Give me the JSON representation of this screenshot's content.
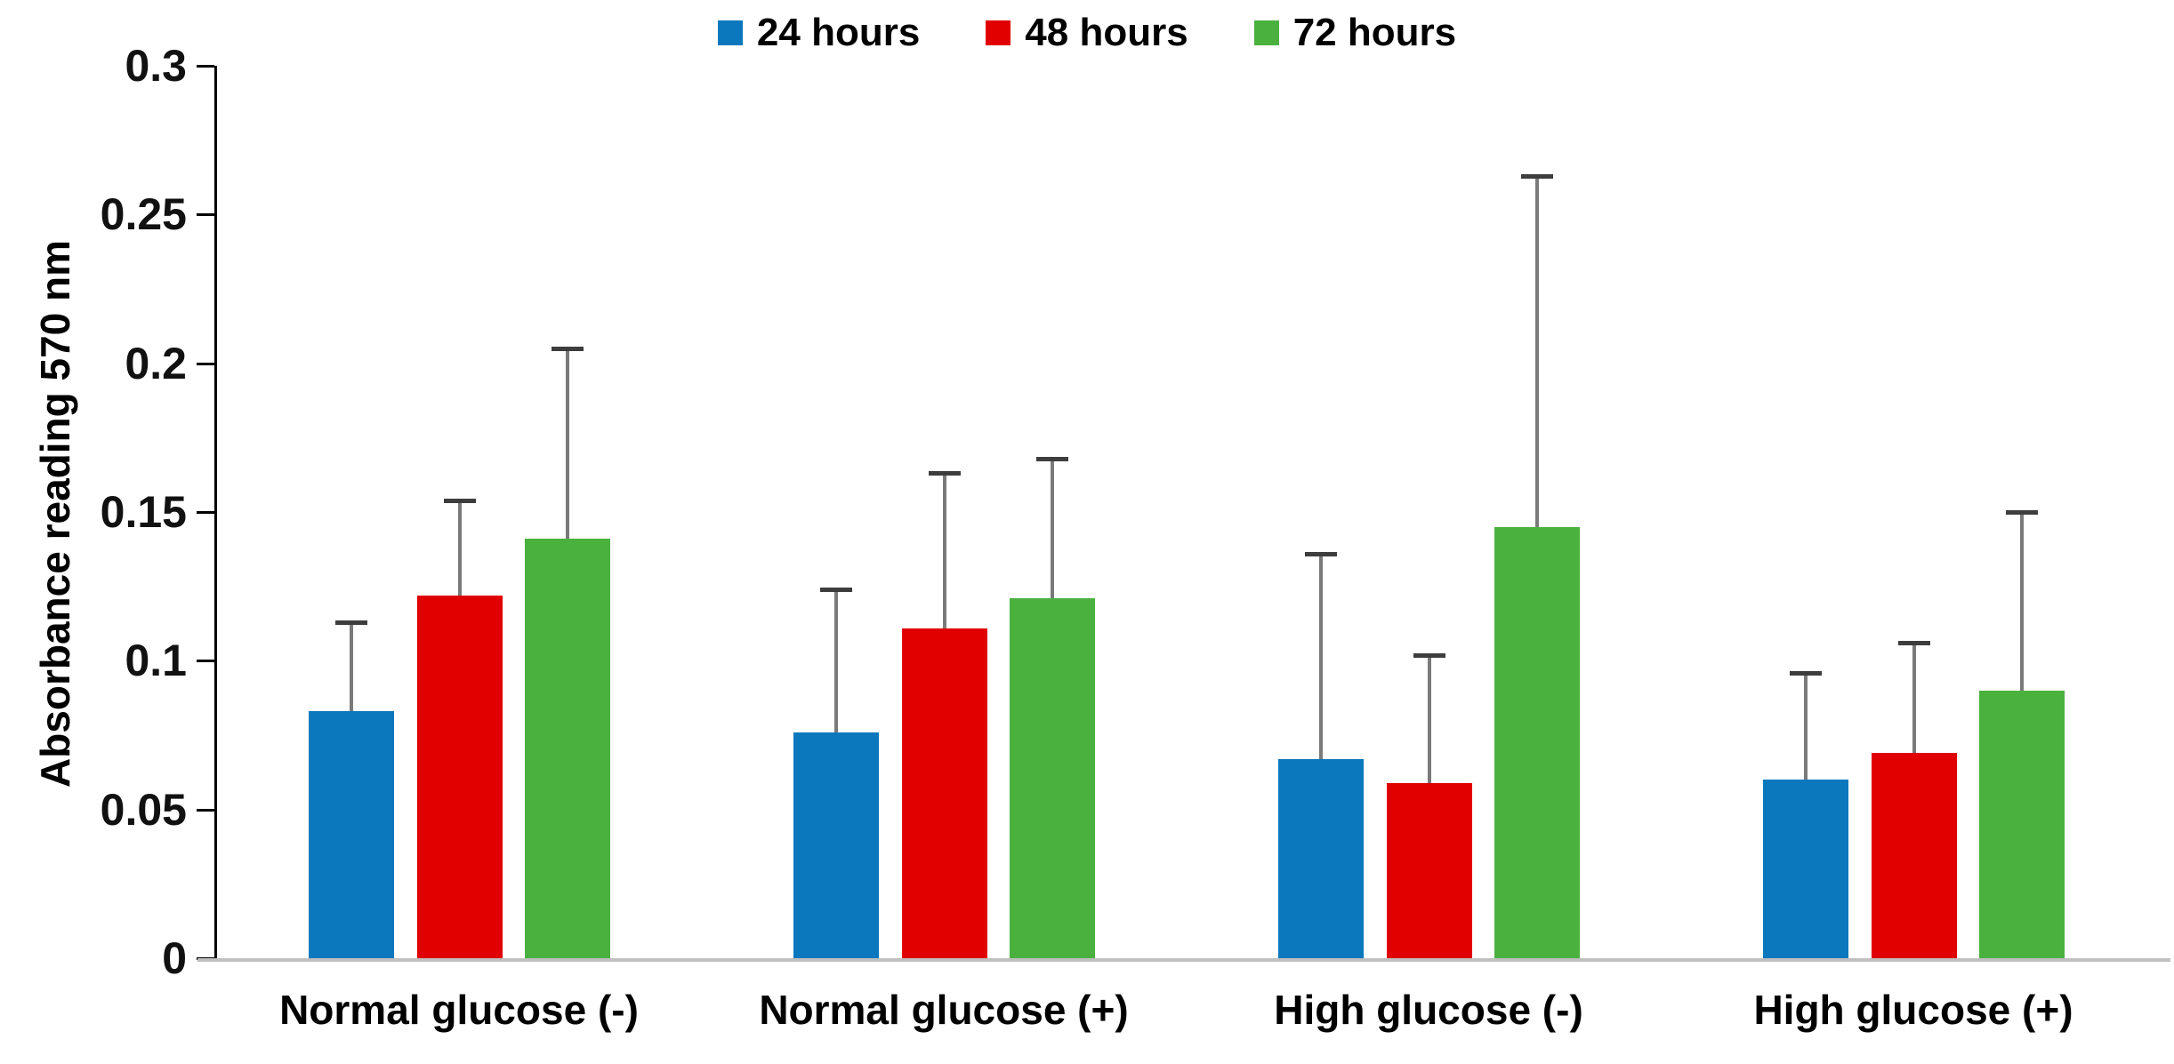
{
  "chart_data": {
    "type": "bar",
    "title": "",
    "xlabel": "",
    "ylabel": "Absorbance reading 570 nm",
    "ylim": [
      0,
      0.3
    ],
    "yticks": [
      0,
      0.05,
      0.1,
      0.15,
      0.2,
      0.25,
      0.3
    ],
    "ytick_labels": [
      "0",
      "0.05",
      "0.1",
      "0.15",
      "0.2",
      "0.25",
      "0.3"
    ],
    "grid": false,
    "legend_position": "top-center",
    "error_bars": "upper whisker with cap, gray",
    "categories": [
      "Normal glucose (-)",
      "Normal glucose (+)",
      "High glucose (-)",
      "High glucose (+)"
    ],
    "series": [
      {
        "name": "24 hours",
        "color": "#0b78be",
        "values": [
          0.083,
          0.076,
          0.067,
          0.06
        ],
        "error_top": [
          0.113,
          0.124,
          0.136,
          0.096
        ]
      },
      {
        "name": "48 hours",
        "color": "#e00000",
        "values": [
          0.122,
          0.111,
          0.059,
          0.069
        ],
        "error_top": [
          0.154,
          0.163,
          0.102,
          0.106
        ]
      },
      {
        "name": "72 hours",
        "color": "#4ab13f",
        "values": [
          0.141,
          0.121,
          0.145,
          0.09
        ],
        "error_top": [
          0.205,
          0.168,
          0.263,
          0.15
        ]
      }
    ]
  }
}
